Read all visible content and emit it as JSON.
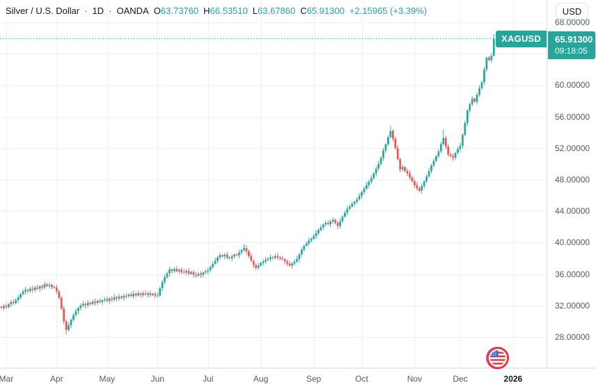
{
  "header": {
    "symbol": "Silver / U.S. Dollar",
    "separator": "·",
    "interval": "1D",
    "exchange": "OANDA",
    "ohlc": [
      {
        "label": "O",
        "value": "63.73760"
      },
      {
        "label": "H",
        "value": "66.53510"
      },
      {
        "label": "L",
        "value": "63.67860"
      },
      {
        "label": "C",
        "value": "65.91300"
      }
    ],
    "change": "+2.15965 (+3.39%)"
  },
  "price_axis": {
    "currency_button": "USD",
    "ticks": [
      {
        "label": "68.00000",
        "price": 68
      },
      {
        "label": "64.00000",
        "price": 64
      },
      {
        "label": "60.00000",
        "price": 60
      },
      {
        "label": "56.00000",
        "price": 56
      },
      {
        "label": "52.00000",
        "price": 52
      },
      {
        "label": "48.00000",
        "price": 48
      },
      {
        "label": "44.00000",
        "price": 44
      },
      {
        "label": "40.00000",
        "price": 40
      },
      {
        "label": "36.00000",
        "price": 36
      },
      {
        "label": "32.00000",
        "price": 32
      },
      {
        "label": "28.00000",
        "price": 28
      }
    ]
  },
  "price_label": {
    "symbol": "XAGUSD",
    "price": "65.91300",
    "countdown": "09:18:05"
  },
  "time_axis": {
    "labels": [
      {
        "text": "Mar",
        "index": 2
      },
      {
        "text": "Apr",
        "index": 23
      },
      {
        "text": "May",
        "index": 44
      },
      {
        "text": "Jun",
        "index": 65
      },
      {
        "text": "Jul",
        "index": 86
      },
      {
        "text": "Aug",
        "index": 108
      },
      {
        "text": "Sep",
        "index": 130
      },
      {
        "text": "Oct",
        "index": 150
      },
      {
        "text": "Nov",
        "index": 172
      },
      {
        "text": "Dec",
        "index": 191
      },
      {
        "text": "2026",
        "index": 213,
        "emphasis": true
      }
    ]
  },
  "icons": {
    "flag": "us-flag-icon"
  },
  "colors": {
    "up": "#26a69a",
    "down": "#ef5350",
    "grid": "#eef1f7",
    "axis_border": "#d6d9e0",
    "axis_text": "#555961",
    "text": "#131722",
    "label_bg": "#26a69a",
    "price_line": "#26a69a",
    "flag_ring": "#f23645",
    "flag_blue": "#3b5fc0"
  },
  "chart_data": {
    "type": "candlestick",
    "title": "Silver / U.S. Dollar",
    "symbol": "XAGUSD",
    "interval": "1D",
    "exchange": "OANDA",
    "currency": "USD",
    "ylim": [
      26.5,
      68.5
    ],
    "y_ticks": [
      28,
      32,
      36,
      40,
      44,
      48,
      52,
      56,
      60,
      64,
      68
    ],
    "x_months": [
      "Mar",
      "Apr",
      "May",
      "Jun",
      "Jul",
      "Aug",
      "Sep",
      "Oct",
      "Nov",
      "Dec",
      "2026"
    ],
    "last_candle": {
      "open": 63.7376,
      "high": 66.5351,
      "low": 63.6786,
      "close": 65.913
    },
    "change_abs": 2.15965,
    "change_pct": 3.39,
    "closes": [
      31.7,
      31.95,
      31.8,
      32.15,
      32.45,
      32.3,
      32.7,
      33.05,
      33.45,
      33.8,
      34.0,
      33.85,
      34.15,
      34.0,
      34.3,
      34.15,
      34.45,
      34.3,
      34.7,
      34.5,
      34.65,
      34.35,
      34.3,
      33.8,
      33.0,
      31.6,
      30.0,
      28.9,
      29.5,
      30.2,
      30.8,
      31.3,
      31.7,
      32.0,
      32.2,
      32.05,
      32.35,
      32.2,
      32.5,
      32.35,
      32.6,
      32.45,
      32.7,
      32.8,
      32.6,
      32.9,
      32.75,
      33.05,
      32.9,
      33.15,
      33.0,
      33.25,
      33.2,
      33.4,
      33.2,
      33.5,
      33.3,
      33.55,
      33.35,
      33.55,
      33.4,
      33.55,
      33.35,
      33.5,
      33.3,
      33.3,
      34.2,
      35.0,
      35.6,
      36.1,
      36.6,
      36.4,
      36.65,
      36.35,
      36.55,
      36.25,
      36.2,
      36.4,
      36.05,
      36.25,
      35.9,
      35.8,
      36.05,
      35.9,
      36.2,
      36.35,
      36.5,
      36.9,
      37.3,
      37.7,
      38.1,
      38.4,
      38.25,
      38.45,
      38.1,
      38.0,
      38.25,
      38.5,
      38.4,
      38.75,
      39.05,
      39.3,
      38.9,
      38.3,
      37.7,
      37.15,
      36.8,
      37.1,
      37.4,
      37.6,
      37.8,
      37.95,
      38.15,
      38.05,
      38.3,
      38.15,
      38.0,
      37.9,
      37.6,
      37.35,
      37.1,
      37.35,
      37.6,
      37.9,
      38.5,
      39.1,
      39.6,
      39.9,
      40.25,
      40.5,
      40.8,
      41.2,
      41.6,
      41.95,
      42.3,
      42.5,
      42.35,
      42.7,
      42.9,
      42.5,
      42.1,
      42.7,
      43.3,
      43.8,
      44.3,
      44.6,
      44.95,
      45.2,
      45.5,
      45.95,
      46.4,
      46.85,
      47.3,
      47.75,
      48.2,
      48.8,
      49.4,
      50.0,
      50.8,
      51.7,
      52.5,
      53.4,
      54.2,
      53.2,
      52.0,
      50.6,
      49.3,
      49.6,
      49.1,
      48.8,
      48.3,
      47.8,
      47.3,
      46.9,
      46.6,
      47.2,
      47.8,
      48.4,
      49.1,
      49.8,
      50.4,
      51.0,
      51.6,
      52.5,
      53.3,
      52.2,
      51.2,
      51.0,
      50.8,
      51.4,
      51.9,
      52.3,
      53.7,
      55.2,
      56.8,
      57.6,
      58.3,
      57.9,
      58.8,
      59.6,
      60.4,
      62.0,
      63.5,
      63.2,
      63.74,
      65.91
    ],
    "wick_overrides": {
      "27": {
        "low": 28.32
      },
      "101": {
        "high": 39.8
      },
      "162": {
        "high": 54.85
      },
      "184": {
        "high": 54.4
      }
    }
  }
}
